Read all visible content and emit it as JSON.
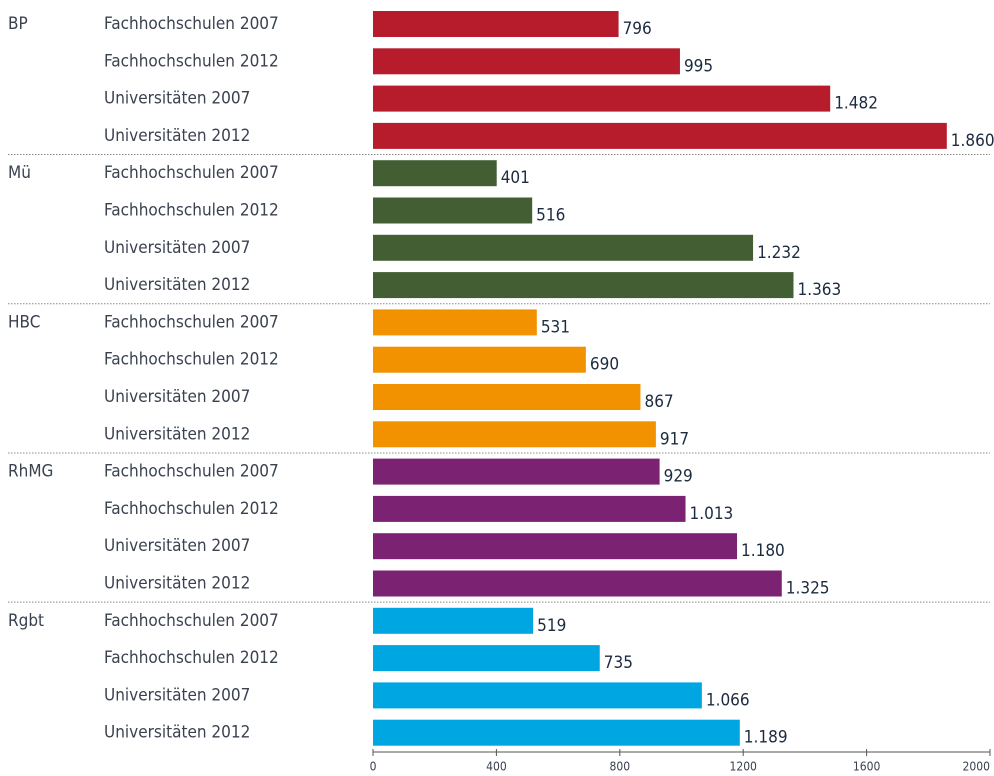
{
  "chart_data": {
    "type": "bar",
    "groups": [
      {
        "name": "BP",
        "color": "#b71c2c",
        "categories": [
          "Fachhochschulen 2007",
          "Fachhochschulen 2012",
          "Universitäten 2007",
          "Universitäten 2012"
        ],
        "values": [
          796,
          995,
          1482,
          1860
        ],
        "value_labels": [
          "796",
          "995",
          "1.482",
          "1.860"
        ]
      },
      {
        "name": "Mü",
        "color": "#445e33",
        "categories": [
          "Fachhochschulen 2007",
          "Fachhochschulen 2012",
          "Universitäten 2007",
          "Universitäten 2012"
        ],
        "values": [
          401,
          516,
          1232,
          1363
        ],
        "value_labels": [
          "401",
          "516",
          "1.232",
          "1.363"
        ]
      },
      {
        "name": "HBC",
        "color": "#f39200",
        "categories": [
          "Fachhochschulen 2007",
          "Fachhochschulen 2012",
          "Universitäten 2007",
          "Universitäten 2012"
        ],
        "values": [
          531,
          690,
          867,
          917
        ],
        "value_labels": [
          "531",
          "690",
          "867",
          "917"
        ]
      },
      {
        "name": "RhMG",
        "color": "#7b2272",
        "categories": [
          "Fachhochschulen 2007",
          "Fachhochschulen 2012",
          "Universitäten 2007",
          "Universitäten 2012"
        ],
        "values": [
          929,
          1013,
          1180,
          1325
        ],
        "value_labels": [
          "929",
          "1.013",
          "1.180",
          "1.325"
        ]
      },
      {
        "name": "Rgbt",
        "color": "#00a6e2",
        "categories": [
          "Fachhochschulen 2007",
          "Fachhochschulen 2012",
          "Universitäten 2007",
          "Universitäten 2012"
        ],
        "values": [
          519,
          735,
          1066,
          1189
        ],
        "value_labels": [
          "519",
          "735",
          "1.066",
          "1.189"
        ]
      }
    ],
    "xlim": [
      0,
      2000
    ],
    "xticks": [
      0,
      400,
      800,
      1200,
      1600,
      2000
    ]
  }
}
